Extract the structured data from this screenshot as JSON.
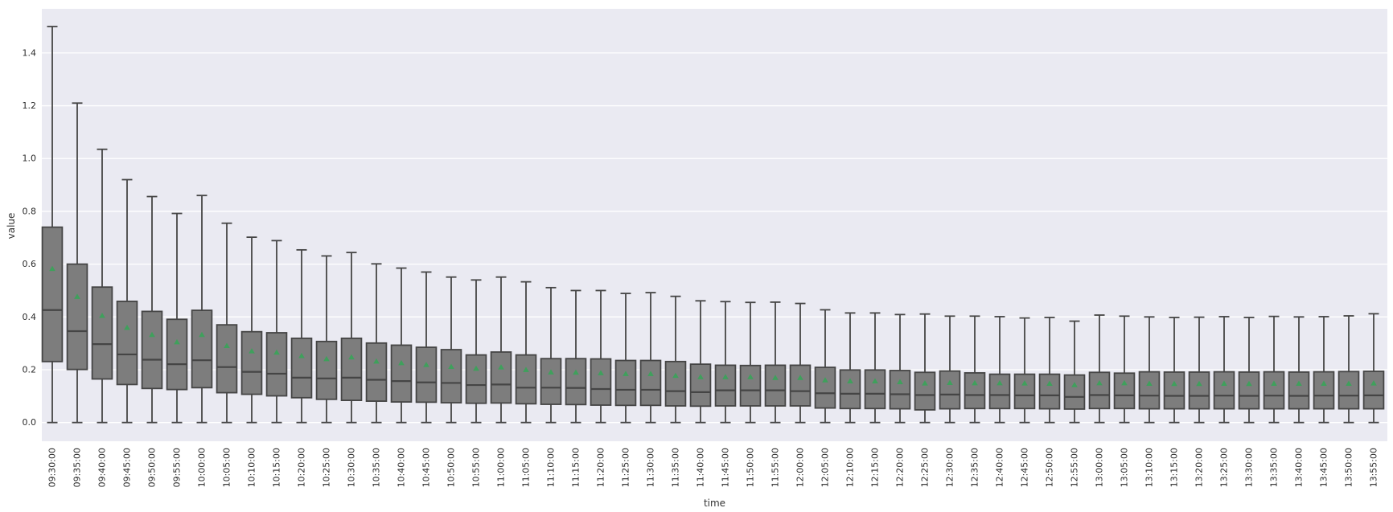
{
  "figure": {
    "xlabel": "time",
    "ylabel": "value",
    "colors": {
      "figure_background": "#ffffff",
      "plot_background": "#eaeaf2",
      "grid": "#ffffff",
      "box_fill": "#7d7d7d",
      "box_edge": "#454545",
      "whisker": "#454545",
      "median": "#454545",
      "mean_marker": "#3fa05c",
      "tick_label": "#2b2b2b",
      "axis_label": "#333333"
    }
  },
  "chart_data": {
    "type": "box",
    "title": "",
    "xlabel": "time",
    "ylabel": "value",
    "grid": true,
    "legend": false,
    "outliers_shown": false,
    "mean_marker": "green-triangle-up",
    "ylim": [
      -0.071,
      1.567
    ],
    "yticks": [
      0.0,
      0.2,
      0.4,
      0.6,
      0.8,
      1.0,
      1.2,
      1.4
    ],
    "boxes": [
      {
        "time": "09:30:00",
        "low": 0.0,
        "q1": 0.231,
        "median": 0.426,
        "mean": 0.583,
        "q3": 0.74,
        "high": 1.5
      },
      {
        "time": "09:35:00",
        "low": 0.0,
        "q1": 0.201,
        "median": 0.346,
        "mean": 0.477,
        "q3": 0.6,
        "high": 1.21
      },
      {
        "time": "09:40:00",
        "low": 0.0,
        "q1": 0.165,
        "median": 0.297,
        "mean": 0.405,
        "q3": 0.513,
        "high": 1.035
      },
      {
        "time": "09:45:00",
        "low": 0.0,
        "q1": 0.144,
        "median": 0.258,
        "mean": 0.36,
        "q3": 0.459,
        "high": 0.92
      },
      {
        "time": "09:50:00",
        "low": 0.0,
        "q1": 0.129,
        "median": 0.238,
        "mean": 0.333,
        "q3": 0.421,
        "high": 0.856
      },
      {
        "time": "09:55:00",
        "low": 0.0,
        "q1": 0.125,
        "median": 0.221,
        "mean": 0.305,
        "q3": 0.391,
        "high": 0.792
      },
      {
        "time": "10:00:00",
        "low": 0.0,
        "q1": 0.132,
        "median": 0.236,
        "mean": 0.333,
        "q3": 0.425,
        "high": 0.86
      },
      {
        "time": "10:05:00",
        "low": 0.0,
        "q1": 0.113,
        "median": 0.21,
        "mean": 0.291,
        "q3": 0.37,
        "high": 0.755
      },
      {
        "time": "10:10:00",
        "low": 0.0,
        "q1": 0.107,
        "median": 0.192,
        "mean": 0.271,
        "q3": 0.344,
        "high": 0.702
      },
      {
        "time": "10:15:00",
        "low": 0.0,
        "q1": 0.101,
        "median": 0.185,
        "mean": 0.266,
        "q3": 0.34,
        "high": 0.689
      },
      {
        "time": "10:20:00",
        "low": 0.0,
        "q1": 0.094,
        "median": 0.17,
        "mean": 0.253,
        "q3": 0.319,
        "high": 0.654
      },
      {
        "time": "10:25:00",
        "low": 0.0,
        "q1": 0.088,
        "median": 0.167,
        "mean": 0.241,
        "q3": 0.307,
        "high": 0.631
      },
      {
        "time": "10:30:00",
        "low": 0.0,
        "q1": 0.084,
        "median": 0.17,
        "mean": 0.248,
        "q3": 0.319,
        "high": 0.644
      },
      {
        "time": "10:35:00",
        "low": 0.0,
        "q1": 0.081,
        "median": 0.162,
        "mean": 0.232,
        "q3": 0.301,
        "high": 0.601
      },
      {
        "time": "10:40:00",
        "low": 0.0,
        "q1": 0.078,
        "median": 0.157,
        "mean": 0.226,
        "q3": 0.293,
        "high": 0.585
      },
      {
        "time": "10:45:00",
        "low": 0.0,
        "q1": 0.077,
        "median": 0.152,
        "mean": 0.219,
        "q3": 0.285,
        "high": 0.57
      },
      {
        "time": "10:50:00",
        "low": 0.0,
        "q1": 0.075,
        "median": 0.15,
        "mean": 0.212,
        "q3": 0.276,
        "high": 0.551
      },
      {
        "time": "10:55:00",
        "low": 0.0,
        "q1": 0.073,
        "median": 0.142,
        "mean": 0.205,
        "q3": 0.256,
        "high": 0.54
      },
      {
        "time": "11:00:00",
        "low": 0.0,
        "q1": 0.074,
        "median": 0.144,
        "mean": 0.21,
        "q3": 0.267,
        "high": 0.551
      },
      {
        "time": "11:05:00",
        "low": 0.0,
        "q1": 0.071,
        "median": 0.132,
        "mean": 0.2,
        "q3": 0.256,
        "high": 0.533
      },
      {
        "time": "11:10:00",
        "low": 0.0,
        "q1": 0.069,
        "median": 0.132,
        "mean": 0.191,
        "q3": 0.242,
        "high": 0.511
      },
      {
        "time": "11:15:00",
        "low": 0.0,
        "q1": 0.068,
        "median": 0.131,
        "mean": 0.19,
        "q3": 0.242,
        "high": 0.5
      },
      {
        "time": "11:20:00",
        "low": 0.0,
        "q1": 0.066,
        "median": 0.127,
        "mean": 0.188,
        "q3": 0.241,
        "high": 0.5
      },
      {
        "time": "11:25:00",
        "low": 0.0,
        "q1": 0.065,
        "median": 0.124,
        "mean": 0.185,
        "q3": 0.235,
        "high": 0.489
      },
      {
        "time": "11:30:00",
        "low": 0.0,
        "q1": 0.065,
        "median": 0.124,
        "mean": 0.185,
        "q3": 0.235,
        "high": 0.492
      },
      {
        "time": "11:35:00",
        "low": 0.0,
        "q1": 0.063,
        "median": 0.119,
        "mean": 0.178,
        "q3": 0.231,
        "high": 0.478
      },
      {
        "time": "11:40:00",
        "low": 0.0,
        "q1": 0.062,
        "median": 0.115,
        "mean": 0.173,
        "q3": 0.221,
        "high": 0.461
      },
      {
        "time": "11:45:00",
        "low": 0.0,
        "q1": 0.063,
        "median": 0.122,
        "mean": 0.173,
        "q3": 0.217,
        "high": 0.458
      },
      {
        "time": "11:50:00",
        "low": 0.0,
        "q1": 0.063,
        "median": 0.122,
        "mean": 0.173,
        "q3": 0.216,
        "high": 0.455
      },
      {
        "time": "11:55:00",
        "low": 0.0,
        "q1": 0.063,
        "median": 0.122,
        "mean": 0.17,
        "q3": 0.217,
        "high": 0.456
      },
      {
        "time": "12:00:00",
        "low": 0.0,
        "q1": 0.063,
        "median": 0.119,
        "mean": 0.17,
        "q3": 0.217,
        "high": 0.451
      },
      {
        "time": "12:05:00",
        "low": 0.0,
        "q1": 0.055,
        "median": 0.111,
        "mean": 0.161,
        "q3": 0.209,
        "high": 0.427
      },
      {
        "time": "12:10:00",
        "low": 0.0,
        "q1": 0.053,
        "median": 0.109,
        "mean": 0.157,
        "q3": 0.199,
        "high": 0.415
      },
      {
        "time": "12:15:00",
        "low": 0.0,
        "q1": 0.053,
        "median": 0.109,
        "mean": 0.157,
        "q3": 0.199,
        "high": 0.415
      },
      {
        "time": "12:20:00",
        "low": 0.0,
        "q1": 0.052,
        "median": 0.107,
        "mean": 0.154,
        "q3": 0.197,
        "high": 0.409
      },
      {
        "time": "12:25:00",
        "low": 0.0,
        "q1": 0.048,
        "median": 0.104,
        "mean": 0.149,
        "q3": 0.19,
        "high": 0.411
      },
      {
        "time": "12:30:00",
        "low": 0.0,
        "q1": 0.052,
        "median": 0.106,
        "mean": 0.151,
        "q3": 0.195,
        "high": 0.403
      },
      {
        "time": "12:35:00",
        "low": 0.0,
        "q1": 0.053,
        "median": 0.104,
        "mean": 0.15,
        "q3": 0.188,
        "high": 0.403
      },
      {
        "time": "12:40:00",
        "low": 0.0,
        "q1": 0.053,
        "median": 0.104,
        "mean": 0.15,
        "q3": 0.183,
        "high": 0.401
      },
      {
        "time": "12:45:00",
        "low": 0.0,
        "q1": 0.053,
        "median": 0.103,
        "mean": 0.149,
        "q3": 0.183,
        "high": 0.396
      },
      {
        "time": "12:50:00",
        "low": 0.0,
        "q1": 0.052,
        "median": 0.103,
        "mean": 0.148,
        "q3": 0.183,
        "high": 0.398
      },
      {
        "time": "12:55:00",
        "low": 0.0,
        "q1": 0.051,
        "median": 0.097,
        "mean": 0.143,
        "q3": 0.18,
        "high": 0.384
      },
      {
        "time": "13:00:00",
        "low": 0.0,
        "q1": 0.053,
        "median": 0.104,
        "mean": 0.15,
        "q3": 0.19,
        "high": 0.407
      },
      {
        "time": "13:05:00",
        "low": 0.0,
        "q1": 0.053,
        "median": 0.103,
        "mean": 0.15,
        "q3": 0.187,
        "high": 0.403
      },
      {
        "time": "13:10:00",
        "low": 0.0,
        "q1": 0.052,
        "median": 0.102,
        "mean": 0.148,
        "q3": 0.192,
        "high": 0.4
      },
      {
        "time": "13:15:00",
        "low": 0.0,
        "q1": 0.052,
        "median": 0.101,
        "mean": 0.147,
        "q3": 0.191,
        "high": 0.398
      },
      {
        "time": "13:20:00",
        "low": 0.0,
        "q1": 0.052,
        "median": 0.101,
        "mean": 0.147,
        "q3": 0.191,
        "high": 0.399
      },
      {
        "time": "13:25:00",
        "low": 0.0,
        "q1": 0.052,
        "median": 0.102,
        "mean": 0.148,
        "q3": 0.192,
        "high": 0.401
      },
      {
        "time": "13:30:00",
        "low": 0.0,
        "q1": 0.052,
        "median": 0.101,
        "mean": 0.147,
        "q3": 0.191,
        "high": 0.398
      },
      {
        "time": "13:35:00",
        "low": 0.0,
        "q1": 0.052,
        "median": 0.102,
        "mean": 0.148,
        "q3": 0.192,
        "high": 0.402
      },
      {
        "time": "13:40:00",
        "low": 0.0,
        "q1": 0.052,
        "median": 0.101,
        "mean": 0.148,
        "q3": 0.191,
        "high": 0.4
      },
      {
        "time": "13:45:00",
        "low": 0.0,
        "q1": 0.052,
        "median": 0.102,
        "mean": 0.148,
        "q3": 0.192,
        "high": 0.401
      },
      {
        "time": "13:50:00",
        "low": 0.0,
        "q1": 0.052,
        "median": 0.102,
        "mean": 0.148,
        "q3": 0.193,
        "high": 0.404
      },
      {
        "time": "13:55:00",
        "low": 0.0,
        "q1": 0.052,
        "median": 0.103,
        "mean": 0.149,
        "q3": 0.194,
        "high": 0.412
      }
    ]
  }
}
